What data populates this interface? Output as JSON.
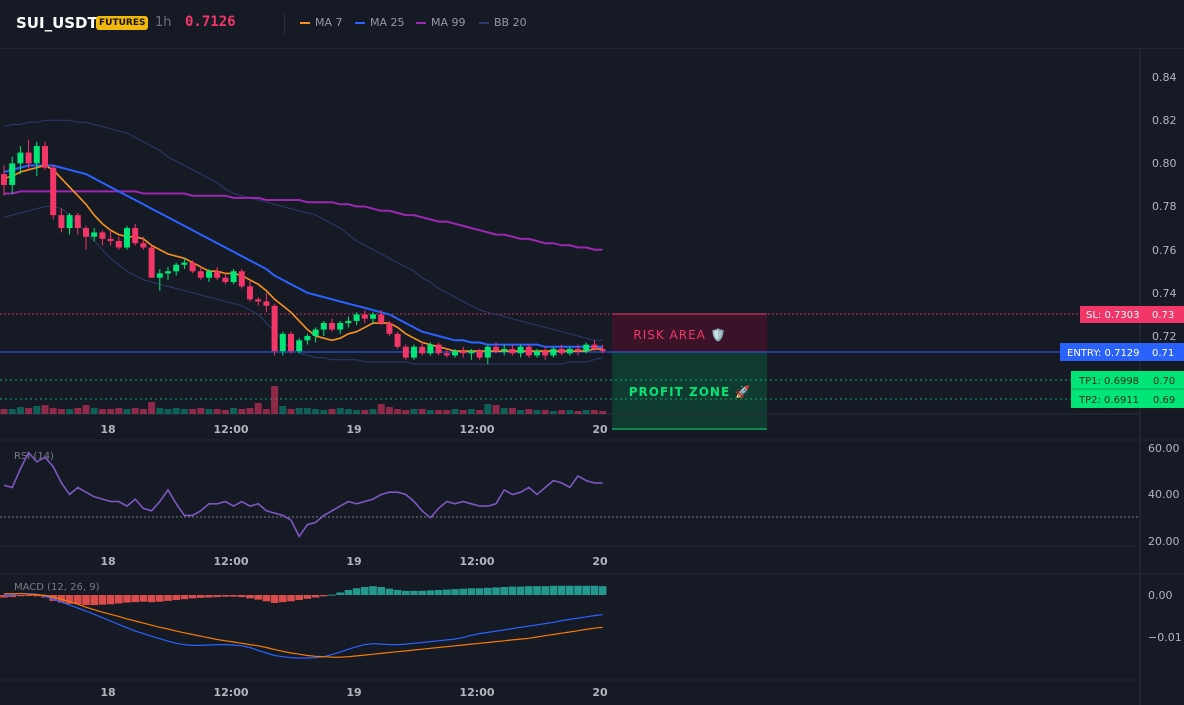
{
  "header": {
    "symbol": "SUI_USDT",
    "badge": "FUTURES",
    "interval": "1h",
    "price": "0.7126",
    "legend": [
      {
        "label": "MA 7",
        "color": "#f7931a"
      },
      {
        "label": "MA 25",
        "color": "#2962ff"
      },
      {
        "label": "MA 99",
        "color": "#9c27b0"
      },
      {
        "label": "BB 20",
        "color": "#2b3a70"
      }
    ]
  },
  "markers": {
    "sl": "SL: 0.7303",
    "entry": "ENTRY: 0.7129",
    "tp1": "TP1: 0.6998",
    "tp2": "TP2: 0.6911",
    "risk_zone": "RISK AREA 🛡️",
    "profit_zone": "PROFIT ZONE 🚀"
  },
  "colors": {
    "up": "#089981",
    "down": "#f23667",
    "bull_body": "#00e676",
    "bear_body": "#f23667",
    "entry": "#2962ff",
    "tp": "#00e676",
    "rsi": "#7e57c2",
    "macd": "#2962ff",
    "signal": "#f57c00"
  },
  "chart_data": [
    {
      "type": "candlestick",
      "title": "SUI_USDT 1h",
      "x_ticks": [
        "18",
        "12:00",
        "19",
        "12:00",
        "20"
      ],
      "y_ticks": [
        "0.84",
        "0.82",
        "0.80",
        "0.78",
        "0.76",
        "0.74",
        "0.72"
      ],
      "ylim": [
        0.69,
        0.85
      ],
      "levels": {
        "sl": 0.7303,
        "entry": 0.7129,
        "tp1": 0.6998,
        "tp2": 0.6911
      },
      "price_axis_labels": {
        "sl": "0.73",
        "entry": "0.71",
        "tp1": "0.70",
        "tp2": "0.69"
      },
      "candles": [
        [
          0.795,
          0.799,
          0.785,
          0.79
        ],
        [
          0.79,
          0.803,
          0.786,
          0.8
        ],
        [
          0.8,
          0.808,
          0.795,
          0.805
        ],
        [
          0.805,
          0.811,
          0.797,
          0.8
        ],
        [
          0.8,
          0.81,
          0.794,
          0.808
        ],
        [
          0.808,
          0.81,
          0.797,
          0.798
        ],
        [
          0.798,
          0.799,
          0.774,
          0.776
        ],
        [
          0.776,
          0.779,
          0.768,
          0.77
        ],
        [
          0.77,
          0.777,
          0.767,
          0.776
        ],
        [
          0.776,
          0.777,
          0.767,
          0.77
        ],
        [
          0.77,
          0.771,
          0.76,
          0.766
        ],
        [
          0.766,
          0.77,
          0.764,
          0.768
        ],
        [
          0.768,
          0.769,
          0.762,
          0.765
        ],
        [
          0.765,
          0.769,
          0.762,
          0.764
        ],
        [
          0.764,
          0.766,
          0.76,
          0.761
        ],
        [
          0.761,
          0.771,
          0.76,
          0.77
        ],
        [
          0.77,
          0.772,
          0.762,
          0.763
        ],
        [
          0.763,
          0.766,
          0.76,
          0.761
        ],
        [
          0.761,
          0.762,
          0.747,
          0.747
        ],
        [
          0.747,
          0.751,
          0.741,
          0.749
        ],
        [
          0.749,
          0.752,
          0.746,
          0.75
        ],
        [
          0.75,
          0.754,
          0.748,
          0.753
        ],
        [
          0.753,
          0.756,
          0.751,
          0.754
        ],
        [
          0.754,
          0.755,
          0.749,
          0.75
        ],
        [
          0.75,
          0.752,
          0.746,
          0.747
        ],
        [
          0.747,
          0.751,
          0.745,
          0.75
        ],
        [
          0.75,
          0.752,
          0.746,
          0.747
        ],
        [
          0.747,
          0.749,
          0.744,
          0.745
        ],
        [
          0.745,
          0.751,
          0.744,
          0.75
        ],
        [
          0.75,
          0.751,
          0.742,
          0.743
        ],
        [
          0.743,
          0.746,
          0.736,
          0.737
        ],
        [
          0.737,
          0.738,
          0.734,
          0.736
        ],
        [
          0.736,
          0.74,
          0.731,
          0.734
        ],
        [
          0.734,
          0.735,
          0.711,
          0.713
        ],
        [
          0.713,
          0.722,
          0.711,
          0.721
        ],
        [
          0.721,
          0.722,
          0.712,
          0.713
        ],
        [
          0.713,
          0.719,
          0.712,
          0.718
        ],
        [
          0.718,
          0.721,
          0.716,
          0.72
        ],
        [
          0.72,
          0.724,
          0.717,
          0.723
        ],
        [
          0.723,
          0.727,
          0.72,
          0.726
        ],
        [
          0.726,
          0.728,
          0.722,
          0.723
        ],
        [
          0.723,
          0.727,
          0.721,
          0.726
        ],
        [
          0.726,
          0.729,
          0.724,
          0.727
        ],
        [
          0.727,
          0.731,
          0.725,
          0.73
        ],
        [
          0.73,
          0.732,
          0.726,
          0.728
        ],
        [
          0.728,
          0.731,
          0.726,
          0.73
        ],
        [
          0.73,
          0.732,
          0.725,
          0.726
        ],
        [
          0.726,
          0.727,
          0.72,
          0.721
        ],
        [
          0.721,
          0.722,
          0.714,
          0.715
        ],
        [
          0.715,
          0.716,
          0.709,
          0.71
        ],
        [
          0.71,
          0.716,
          0.709,
          0.715
        ],
        [
          0.715,
          0.717,
          0.711,
          0.712
        ],
        [
          0.712,
          0.717,
          0.711,
          0.716
        ],
        [
          0.716,
          0.717,
          0.711,
          0.712
        ],
        [
          0.712,
          0.714,
          0.71,
          0.711
        ],
        [
          0.711,
          0.714,
          0.71,
          0.713
        ],
        [
          0.713,
          0.715,
          0.71,
          0.712
        ],
        [
          0.712,
          0.714,
          0.709,
          0.713
        ],
        [
          0.713,
          0.714,
          0.709,
          0.71
        ],
        [
          0.71,
          0.716,
          0.707,
          0.715
        ],
        [
          0.715,
          0.717,
          0.712,
          0.713
        ],
        [
          0.713,
          0.716,
          0.711,
          0.714
        ],
        [
          0.714,
          0.716,
          0.711,
          0.712
        ],
        [
          0.712,
          0.716,
          0.71,
          0.715
        ],
        [
          0.715,
          0.716,
          0.71,
          0.711
        ],
        [
          0.711,
          0.714,
          0.71,
          0.713
        ],
        [
          0.713,
          0.715,
          0.709,
          0.711
        ],
        [
          0.711,
          0.715,
          0.71,
          0.714
        ],
        [
          0.714,
          0.716,
          0.711,
          0.712
        ],
        [
          0.712,
          0.715,
          0.711,
          0.714
        ],
        [
          0.714,
          0.716,
          0.711,
          0.713
        ],
        [
          0.713,
          0.717,
          0.712,
          0.716
        ],
        [
          0.716,
          0.718,
          0.713,
          0.714
        ],
        [
          0.714,
          0.716,
          0.712,
          0.713
        ]
      ],
      "volumes": [
        5,
        5,
        7,
        6,
        8,
        9,
        6,
        5,
        5,
        6,
        9,
        6,
        5,
        5,
        6,
        5,
        6,
        5,
        12,
        6,
        5,
        6,
        5,
        5,
        6,
        5,
        5,
        4,
        6,
        5,
        6,
        11,
        5,
        28,
        8,
        5,
        6,
        6,
        5,
        4,
        5,
        6,
        5,
        4,
        4,
        5,
        10,
        7,
        5,
        4,
        5,
        5,
        4,
        4,
        4,
        5,
        4,
        5,
        4,
        10,
        9,
        6,
        6,
        4,
        5,
        4,
        4,
        3,
        4,
        4,
        3,
        4,
        4,
        3
      ],
      "ma7": [
        0.793,
        0.794,
        0.796,
        0.797,
        0.798,
        0.799,
        0.797,
        0.793,
        0.789,
        0.785,
        0.781,
        0.776,
        0.772,
        0.769,
        0.767,
        0.766,
        0.766,
        0.765,
        0.762,
        0.76,
        0.758,
        0.757,
        0.756,
        0.754,
        0.752,
        0.75,
        0.75,
        0.749,
        0.749,
        0.748,
        0.746,
        0.744,
        0.741,
        0.737,
        0.734,
        0.731,
        0.727,
        0.723,
        0.72,
        0.719,
        0.718,
        0.719,
        0.721,
        0.722,
        0.724,
        0.726,
        0.726,
        0.726,
        0.724,
        0.721,
        0.719,
        0.717,
        0.716,
        0.715,
        0.714,
        0.713,
        0.713,
        0.713,
        0.713,
        0.713,
        0.713,
        0.713,
        0.713,
        0.713,
        0.713,
        0.713,
        0.713,
        0.713,
        0.713,
        0.713,
        0.713,
        0.713,
        0.714,
        0.714
      ],
      "ma25": [
        0.796,
        0.797,
        0.798,
        0.799,
        0.799,
        0.799,
        0.799,
        0.798,
        0.797,
        0.796,
        0.795,
        0.793,
        0.791,
        0.789,
        0.787,
        0.785,
        0.783,
        0.781,
        0.779,
        0.777,
        0.775,
        0.773,
        0.771,
        0.769,
        0.767,
        0.765,
        0.763,
        0.761,
        0.759,
        0.757,
        0.755,
        0.753,
        0.751,
        0.748,
        0.746,
        0.744,
        0.742,
        0.74,
        0.739,
        0.738,
        0.737,
        0.736,
        0.735,
        0.734,
        0.733,
        0.732,
        0.731,
        0.73,
        0.728,
        0.726,
        0.724,
        0.722,
        0.721,
        0.72,
        0.719,
        0.718,
        0.718,
        0.717,
        0.717,
        0.716,
        0.716,
        0.716,
        0.716,
        0.716,
        0.716,
        0.716,
        0.715,
        0.715,
        0.715,
        0.715,
        0.715,
        0.715,
        0.715,
        0.715
      ],
      "ma99": [
        0.786,
        0.786,
        0.787,
        0.787,
        0.787,
        0.787,
        0.787,
        0.787,
        0.787,
        0.787,
        0.787,
        0.787,
        0.787,
        0.787,
        0.787,
        0.787,
        0.787,
        0.786,
        0.786,
        0.786,
        0.786,
        0.786,
        0.786,
        0.785,
        0.785,
        0.785,
        0.785,
        0.785,
        0.784,
        0.784,
        0.784,
        0.784,
        0.783,
        0.783,
        0.783,
        0.783,
        0.783,
        0.782,
        0.782,
        0.782,
        0.782,
        0.781,
        0.781,
        0.78,
        0.78,
        0.779,
        0.778,
        0.778,
        0.777,
        0.776,
        0.776,
        0.775,
        0.774,
        0.773,
        0.773,
        0.772,
        0.771,
        0.77,
        0.769,
        0.768,
        0.767,
        0.767,
        0.766,
        0.765,
        0.765,
        0.764,
        0.763,
        0.763,
        0.762,
        0.762,
        0.761,
        0.761,
        0.76,
        0.76
      ],
      "bb_upper": [
        0.817,
        0.818,
        0.818,
        0.819,
        0.819,
        0.82,
        0.82,
        0.82,
        0.82,
        0.819,
        0.819,
        0.818,
        0.817,
        0.816,
        0.815,
        0.814,
        0.812,
        0.81,
        0.808,
        0.806,
        0.803,
        0.801,
        0.799,
        0.797,
        0.795,
        0.793,
        0.791,
        0.788,
        0.786,
        0.785,
        0.784,
        0.783,
        0.782,
        0.781,
        0.78,
        0.779,
        0.778,
        0.777,
        0.776,
        0.774,
        0.772,
        0.77,
        0.767,
        0.764,
        0.762,
        0.76,
        0.758,
        0.756,
        0.754,
        0.752,
        0.75,
        0.747,
        0.745,
        0.742,
        0.74,
        0.738,
        0.736,
        0.734,
        0.732,
        0.731,
        0.73,
        0.729,
        0.728,
        0.727,
        0.726,
        0.725,
        0.724,
        0.723,
        0.722,
        0.721,
        0.72,
        0.719,
        0.718,
        0.718
      ],
      "bb_lower": [
        0.775,
        0.776,
        0.777,
        0.778,
        0.779,
        0.78,
        0.78,
        0.779,
        0.776,
        0.772,
        0.768,
        0.764,
        0.76,
        0.756,
        0.753,
        0.75,
        0.748,
        0.746,
        0.745,
        0.744,
        0.743,
        0.742,
        0.741,
        0.74,
        0.739,
        0.738,
        0.737,
        0.736,
        0.735,
        0.734,
        0.732,
        0.73,
        0.726,
        0.722,
        0.718,
        0.714,
        0.712,
        0.711,
        0.71,
        0.71,
        0.709,
        0.709,
        0.709,
        0.709,
        0.708,
        0.708,
        0.708,
        0.708,
        0.708,
        0.708,
        0.707,
        0.707,
        0.707,
        0.707,
        0.707,
        0.707,
        0.707,
        0.707,
        0.707,
        0.707,
        0.707,
        0.707,
        0.707,
        0.707,
        0.707,
        0.707,
        0.707,
        0.707,
        0.707,
        0.708,
        0.708,
        0.708,
        0.709,
        0.71
      ]
    },
    {
      "type": "line",
      "title": "RSI (14)",
      "x_ticks": [
        "18",
        "12:00",
        "19",
        "12:00",
        "20"
      ],
      "y_ticks": [
        "60.00",
        "40.00",
        "20.00"
      ],
      "ylim": [
        18,
        62
      ],
      "reference_line": 30,
      "values": [
        44,
        43,
        51,
        58,
        54,
        56,
        52,
        45,
        40,
        43,
        41,
        39,
        38,
        37,
        37,
        35,
        38,
        34,
        33,
        37,
        42,
        36,
        31,
        31,
        33,
        36,
        36,
        37,
        35,
        37,
        35,
        36,
        33,
        32,
        31,
        29,
        22,
        27,
        28,
        31,
        33,
        35,
        37,
        36,
        37,
        38,
        40,
        41,
        41,
        40,
        37,
        33,
        30,
        34,
        37,
        36,
        37,
        36,
        35,
        35,
        36,
        42,
        40,
        41,
        43,
        40,
        43,
        46,
        45,
        43,
        48,
        46,
        45,
        45
      ]
    },
    {
      "type": "bar+line",
      "title": "MACD (12, 26, 9)",
      "x_ticks": [
        "18",
        "12:00",
        "19",
        "12:00",
        "20"
      ],
      "y_ticks": [
        "0.00",
        "−0.01"
      ],
      "ylim": [
        -0.0175,
        0.004
      ],
      "histogram": [
        -0.0006,
        -0.0005,
        -0.0003,
        -0.0002,
        -0.0003,
        -0.0006,
        -0.0014,
        -0.0018,
        -0.0021,
        -0.0022,
        -0.0024,
        -0.0024,
        -0.0023,
        -0.0022,
        -0.002,
        -0.0018,
        -0.0017,
        -0.0016,
        -0.0017,
        -0.0016,
        -0.0014,
        -0.0012,
        -0.001,
        -0.0008,
        -0.0007,
        -0.0006,
        -0.0005,
        -0.0004,
        -0.0004,
        -0.0005,
        -0.0008,
        -0.0011,
        -0.0015,
        -0.0019,
        -0.0017,
        -0.0015,
        -0.0012,
        -0.0009,
        -0.0006,
        -0.0003,
        0.0001,
        0.0006,
        0.0012,
        0.0016,
        0.0019,
        0.0021,
        0.0019,
        0.0015,
        0.0012,
        0.001,
        0.001,
        0.001,
        0.0011,
        0.0012,
        0.0013,
        0.0014,
        0.0015,
        0.0016,
        0.0016,
        0.0017,
        0.0018,
        0.0019,
        0.002,
        0.002,
        0.0021,
        0.0021,
        0.0021,
        0.0022,
        0.0022,
        0.0022,
        0.0022,
        0.0022,
        0.0022,
        0.0021
      ],
      "macd": [
        0.0,
        0.0,
        0.0004,
        0.0003,
        0.0002,
        -0.0003,
        -0.001,
        -0.0017,
        -0.0024,
        -0.0031,
        -0.0038,
        -0.0046,
        -0.0054,
        -0.0062,
        -0.007,
        -0.0078,
        -0.0086,
        -0.0092,
        -0.0098,
        -0.0104,
        -0.011,
        -0.0115,
        -0.0118,
        -0.012,
        -0.012,
        -0.0119,
        -0.0118,
        -0.0118,
        -0.0119,
        -0.0121,
        -0.0125,
        -0.0132,
        -0.0138,
        -0.0144,
        -0.0147,
        -0.0149,
        -0.015,
        -0.015,
        -0.0149,
        -0.0147,
        -0.0142,
        -0.0136,
        -0.0129,
        -0.0123,
        -0.0118,
        -0.0116,
        -0.0117,
        -0.0118,
        -0.0118,
        -0.0117,
        -0.0115,
        -0.0113,
        -0.0111,
        -0.0109,
        -0.0107,
        -0.0105,
        -0.0101,
        -0.0096,
        -0.0092,
        -0.0089,
        -0.0086,
        -0.0083,
        -0.008,
        -0.0077,
        -0.0074,
        -0.0071,
        -0.0068,
        -0.0065,
        -0.0061,
        -0.0058,
        -0.0055,
        -0.0052,
        -0.0049,
        -0.0047
      ],
      "signal": [
        0.0003,
        0.0003,
        0.0003,
        0.0002,
        0.0001,
        -0.0001,
        -0.0005,
        -0.001,
        -0.0016,
        -0.0022,
        -0.0029,
        -0.0035,
        -0.0041,
        -0.0046,
        -0.0051,
        -0.0057,
        -0.0062,
        -0.0067,
        -0.0072,
        -0.0077,
        -0.0081,
        -0.0086,
        -0.009,
        -0.0094,
        -0.0098,
        -0.0102,
        -0.0106,
        -0.0109,
        -0.0112,
        -0.0115,
        -0.0118,
        -0.0121,
        -0.0125,
        -0.013,
        -0.0134,
        -0.0138,
        -0.0141,
        -0.0144,
        -0.0146,
        -0.0147,
        -0.0148,
        -0.0148,
        -0.0147,
        -0.0145,
        -0.0143,
        -0.0141,
        -0.0139,
        -0.0137,
        -0.0135,
        -0.0133,
        -0.0131,
        -0.0129,
        -0.0127,
        -0.0125,
        -0.0123,
        -0.0121,
        -0.0119,
        -0.0117,
        -0.0115,
        -0.0113,
        -0.0111,
        -0.0109,
        -0.0107,
        -0.0105,
        -0.0103,
        -0.01,
        -0.0097,
        -0.0094,
        -0.0091,
        -0.0088,
        -0.0085,
        -0.0082,
        -0.0079,
        -0.0077
      ]
    }
  ]
}
